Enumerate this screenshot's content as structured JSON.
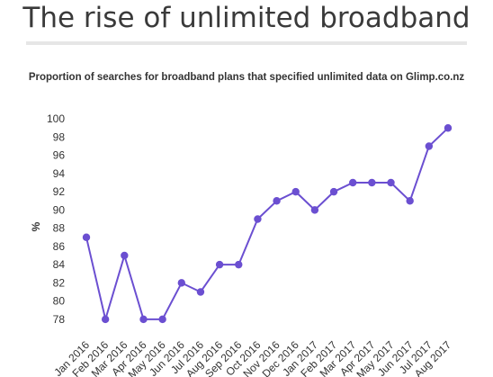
{
  "header": {
    "title": "The rise of unlimited broadband"
  },
  "chart_data": {
    "type": "line",
    "title": "Proportion of searches for broadband plans that specified unlimited data on Glimp.co.nz",
    "xlabel": "",
    "ylabel": "%",
    "categories": [
      "Jan 2016",
      "Feb 2016",
      "Mar 2016",
      "Apr 2016",
      "May 2016",
      "Jun 2016",
      "Jul 2016",
      "Aug 2016",
      "Sep 2016",
      "Oct 2016",
      "Nov 2016",
      "Dec 2016",
      "Jan 2017",
      "Feb 2017",
      "Mar 2017",
      "Apr 2017",
      "May 2017",
      "Jun 2017",
      "Jul 2017",
      "Aug 2017"
    ],
    "series": [
      {
        "values": [
          87,
          78,
          85,
          78,
          78,
          82,
          81,
          84,
          84,
          89,
          91,
          92,
          90,
          92,
          93,
          93,
          93,
          91,
          97,
          99
        ]
      }
    ],
    "ylim": [
      77,
      101
    ],
    "yticks": [
      78,
      80,
      82,
      84,
      86,
      88,
      90,
      92,
      94,
      96,
      98,
      100
    ],
    "grid": false,
    "line_color": "#6b4fd1"
  }
}
